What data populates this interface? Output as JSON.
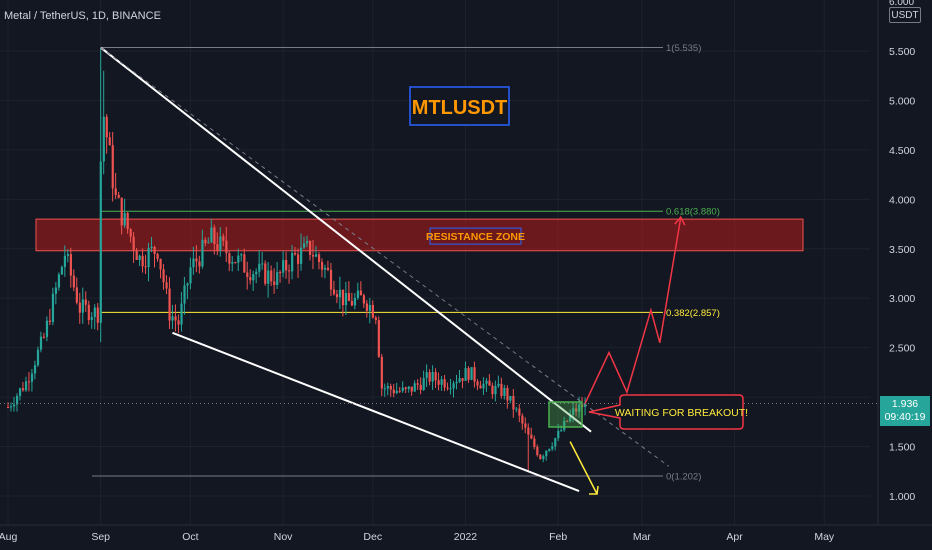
{
  "header": {
    "symbol_title": "Metal / TetherUS, 1D, BINANCE"
  },
  "axis": {
    "currency": "USDT",
    "top_tick": "6.000",
    "current_price": "1.936",
    "countdown": "09:40:19"
  },
  "annotations": {
    "main_title": "MTLUSDT",
    "resistance_label": "RESISTANCE ZONE",
    "waiting_label": "WAITING FOR BREAKOUT!",
    "fib_top": "1(5.535)",
    "fib_618": "0.618(3.880)",
    "fib_382": "0.382(2.857)",
    "fib_bottom": "0(1.202)"
  },
  "colors": {
    "background": "#131722",
    "up": "#26a69a",
    "down": "#ef5350",
    "fib_618": "#4caf50",
    "fib_382": "#ffeb3b",
    "resistance": "#b71c1c",
    "title_text": "#ff9800",
    "title_border": "#2962ff",
    "projection_up": "#f23645",
    "projection_down": "#ffeb3b"
  },
  "chart_data": {
    "type": "candlestick",
    "title": "Metal / TetherUS, 1D, BINANCE",
    "y_ticks": [
      1.0,
      1.5,
      2.0,
      2.5,
      3.0,
      3.5,
      4.0,
      4.5,
      5.0,
      5.5
    ],
    "y_tick_labels": [
      "1.000",
      "1.500",
      "",
      "2.500",
      "3.000",
      "3.500",
      "4.000",
      "4.500",
      "5.000",
      "5.500"
    ],
    "x_ticks": [
      "Aug",
      "Sep",
      "Oct",
      "Nov",
      "Dec",
      "2022",
      "Feb",
      "Mar",
      "Apr",
      "May"
    ],
    "fib_levels": [
      {
        "ratio": 1,
        "price": 5.535
      },
      {
        "ratio": 0.618,
        "price": 3.88
      },
      {
        "ratio": 0.382,
        "price": 2.857
      },
      {
        "ratio": 0,
        "price": 1.202
      }
    ],
    "resistance_zone": [
      3.48,
      3.8
    ],
    "current_price": 1.936,
    "price_path": [
      {
        "date": "2021-08-01",
        "price": 1.9
      },
      {
        "date": "2021-08-07",
        "price": 2.15
      },
      {
        "date": "2021-08-13",
        "price": 2.6
      },
      {
        "date": "2021-08-20",
        "price": 3.45
      },
      {
        "date": "2021-08-25",
        "price": 2.9
      },
      {
        "date": "2021-08-31",
        "price": 2.85
      },
      {
        "date": "2021-09-01",
        "price": 4.4
      },
      {
        "date": "2021-09-02",
        "price": 4.85
      },
      {
        "date": "2021-09-06",
        "price": 4.0
      },
      {
        "date": "2021-09-10",
        "price": 3.7
      },
      {
        "date": "2021-09-14",
        "price": 3.4
      },
      {
        "date": "2021-09-20",
        "price": 3.5
      },
      {
        "date": "2021-09-24",
        "price": 2.85
      },
      {
        "date": "2021-09-27",
        "price": 2.75
      },
      {
        "date": "2021-10-01",
        "price": 3.3
      },
      {
        "date": "2021-10-08",
        "price": 3.6
      },
      {
        "date": "2021-10-14",
        "price": 3.45
      },
      {
        "date": "2021-10-20",
        "price": 3.3
      },
      {
        "date": "2021-10-30",
        "price": 3.2
      },
      {
        "date": "2021-11-04",
        "price": 3.4
      },
      {
        "date": "2021-11-10",
        "price": 3.5
      },
      {
        "date": "2021-11-16",
        "price": 3.25
      },
      {
        "date": "2021-11-22",
        "price": 2.95
      },
      {
        "date": "2021-11-28",
        "price": 3.0
      },
      {
        "date": "2021-12-02",
        "price": 2.85
      },
      {
        "date": "2021-12-04",
        "price": 2.1
      },
      {
        "date": "2021-12-12",
        "price": 2.05
      },
      {
        "date": "2021-12-20",
        "price": 2.2
      },
      {
        "date": "2021-12-26",
        "price": 2.15
      },
      {
        "date": "2022-01-02",
        "price": 2.25
      },
      {
        "date": "2022-01-08",
        "price": 2.1
      },
      {
        "date": "2022-01-14",
        "price": 2.05
      },
      {
        "date": "2022-01-18",
        "price": 1.85
      },
      {
        "date": "2022-01-22",
        "price": 1.6
      },
      {
        "date": "2022-01-26",
        "price": 1.4
      },
      {
        "date": "2022-02-01",
        "price": 1.62
      },
      {
        "date": "2022-02-06",
        "price": 1.85
      },
      {
        "date": "2022-02-10",
        "price": 1.936
      }
    ],
    "trendlines": [
      {
        "from": {
          "date": "2021-09-01",
          "price": 5.535
        },
        "to": {
          "date": "2022-02-12",
          "price": 1.65
        },
        "style": "solid"
      },
      {
        "from": {
          "date": "2021-09-25",
          "price": 2.65
        },
        "to": {
          "date": "2022-02-08",
          "price": 1.05
        },
        "style": "solid"
      },
      {
        "from": {
          "date": "2021-09-01",
          "price": 5.535
        },
        "to": {
          "date": "2022-03-10",
          "price": 1.3
        },
        "style": "dashed"
      }
    ],
    "projection_up": [
      {
        "date": "2022-02-10",
        "price": 1.936
      },
      {
        "date": "2022-02-18",
        "price": 2.45
      },
      {
        "date": "2022-02-24",
        "price": 2.05
      },
      {
        "date": "2022-03-04",
        "price": 2.88
      },
      {
        "date": "2022-03-07",
        "price": 2.55
      },
      {
        "date": "2022-03-14",
        "price": 3.82
      }
    ],
    "projection_down": [
      {
        "date": "2022-02-05",
        "price": 1.55
      },
      {
        "date": "2022-02-14",
        "price": 1.02
      }
    ]
  }
}
